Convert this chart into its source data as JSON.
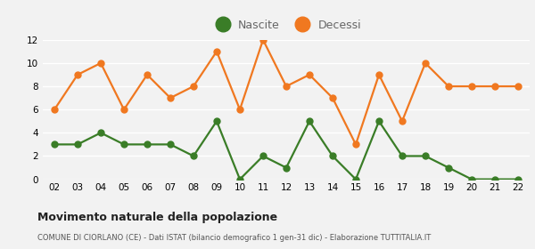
{
  "years": [
    "02",
    "03",
    "04",
    "05",
    "06",
    "07",
    "08",
    "09",
    "10",
    "11",
    "12",
    "13",
    "14",
    "15",
    "16",
    "17",
    "18",
    "19",
    "20",
    "21",
    "22"
  ],
  "nascite": [
    3,
    3,
    4,
    3,
    3,
    3,
    2,
    5,
    0,
    2,
    1,
    5,
    2,
    0,
    5,
    2,
    2,
    1,
    0,
    0,
    0
  ],
  "decessi": [
    6,
    9,
    10,
    6,
    9,
    7,
    8,
    11,
    6,
    12,
    8,
    9,
    7,
    3,
    9,
    5,
    10,
    8,
    8,
    8,
    8
  ],
  "nascite_color": "#3a7d27",
  "decessi_color": "#f07820",
  "background_color": "#f2f2f2",
  "grid_color": "#ffffff",
  "title": "Movimento naturale della popolazione",
  "subtitle": "COMUNE DI CIORLANO (CE) - Dati ISTAT (bilancio demografico 1 gen-31 dic) - Elaborazione TUTTITALIA.IT",
  "legend_nascite": "Nascite",
  "legend_decessi": "Decessi",
  "ylim": [
    0,
    12
  ],
  "yticks": [
    0,
    2,
    4,
    6,
    8,
    10,
    12
  ],
  "marker_size": 5,
  "line_width": 1.6,
  "legend_marker_size": 12
}
